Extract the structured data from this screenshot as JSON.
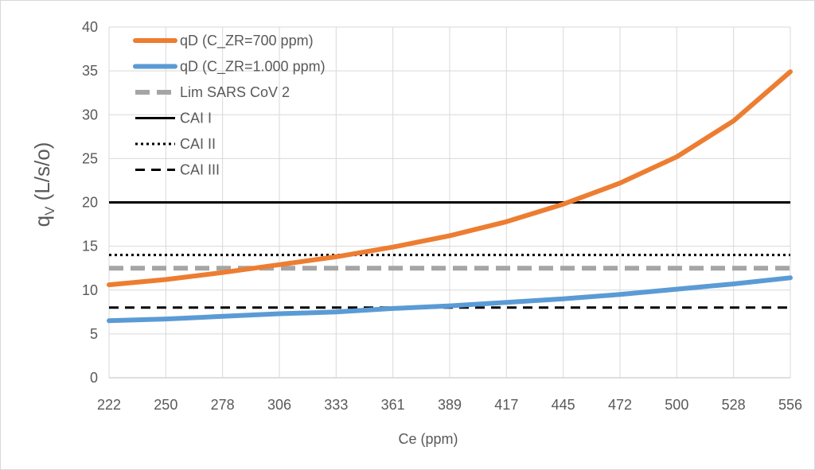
{
  "chart_data": {
    "type": "line",
    "title": "",
    "xlabel": "Ce (ppm)",
    "ylabel": "qV (L/s/o)",
    "ylabel_main": "q",
    "ylabel_sub": "V",
    "ylabel_rest": " (L/s/o)",
    "categories": [
      "222",
      "250",
      "278",
      "306",
      "333",
      "361",
      "389",
      "417",
      "445",
      "472",
      "500",
      "528",
      "556"
    ],
    "ylim": [
      0,
      40
    ],
    "yticks": [
      0,
      5,
      10,
      15,
      20,
      25,
      30,
      35,
      40
    ],
    "grid": "vertical and horizontal",
    "legend_position": "top-left",
    "series": [
      {
        "name": "qD (C_ZR=700 ppm)",
        "color": "#ED7D31",
        "style": "solid-thick",
        "values": [
          10.6,
          11.2,
          12.0,
          12.9,
          13.8,
          14.9,
          16.2,
          17.8,
          19.8,
          22.2,
          25.2,
          29.3,
          34.9
        ]
      },
      {
        "name": "qD (C_ZR=1.000 ppm)",
        "color": "#5B9BD5",
        "style": "solid-thick",
        "values": [
          6.5,
          6.7,
          7.0,
          7.3,
          7.5,
          7.9,
          8.2,
          8.6,
          9.0,
          9.5,
          10.1,
          10.7,
          11.4
        ]
      },
      {
        "name": "Lim SARS CoV 2",
        "color": "#A5A5A5",
        "style": "dashed-thick",
        "values": [
          12.5,
          12.5,
          12.5,
          12.5,
          12.5,
          12.5,
          12.5,
          12.5,
          12.5,
          12.5,
          12.5,
          12.5,
          12.5
        ]
      },
      {
        "name": "CAI I",
        "color": "#000000",
        "style": "solid",
        "values": [
          20,
          20,
          20,
          20,
          20,
          20,
          20,
          20,
          20,
          20,
          20,
          20,
          20
        ]
      },
      {
        "name": "CAI II",
        "color": "#000000",
        "style": "dotted",
        "values": [
          14,
          14,
          14,
          14,
          14,
          14,
          14,
          14,
          14,
          14,
          14,
          14,
          14
        ]
      },
      {
        "name": "CAI III",
        "color": "#000000",
        "style": "dashed",
        "values": [
          8,
          8,
          8,
          8,
          8,
          8,
          8,
          8,
          8,
          8,
          8,
          8,
          8
        ]
      }
    ]
  }
}
